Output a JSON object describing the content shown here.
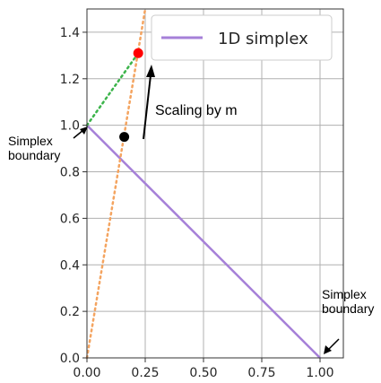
{
  "chart_data": {
    "type": "line",
    "title": "",
    "xlabel": "",
    "ylabel": "",
    "xlim": [
      0.0,
      1.1
    ],
    "ylim": [
      0.0,
      1.5
    ],
    "xticks": [
      "0.00",
      "0.25",
      "0.50",
      "0.75",
      "1.00"
    ],
    "xtick_values": [
      0.0,
      0.25,
      0.5,
      0.75,
      1.0
    ],
    "yticks": [
      "0.0",
      "0.2",
      "0.4",
      "0.6",
      "0.8",
      "1.0",
      "1.2",
      "1.4"
    ],
    "ytick_values": [
      0.0,
      0.2,
      0.4,
      0.6,
      0.8,
      1.0,
      1.2,
      1.4
    ],
    "grid": true,
    "legend": {
      "placement": "top-right",
      "entries": [
        {
          "label": "1D simplex",
          "color": "#a680d8"
        }
      ]
    },
    "series": [
      {
        "name": "1D simplex",
        "style": "solid",
        "color": "#a680d8",
        "x": [
          0.0,
          1.0
        ],
        "y": [
          1.0,
          0.0
        ]
      },
      {
        "style": "dotted",
        "color": "#f4a460",
        "x": [
          0.0,
          0.25
        ],
        "y": [
          0.0,
          1.5
        ]
      },
      {
        "style": "dotted",
        "color": "#3cb44b",
        "x": [
          0.0,
          0.22
        ],
        "y": [
          1.0,
          1.31
        ]
      }
    ],
    "points": [
      {
        "x": 0.16,
        "y": 0.95,
        "color": "#000000"
      },
      {
        "x": 0.22,
        "y": 1.31,
        "color": "#ff0000"
      }
    ],
    "annotations": {
      "scaling": "Scaling by m",
      "boundary_left": [
        "Simplex",
        "boundary"
      ],
      "boundary_right": [
        "Simplex",
        "boundary"
      ]
    }
  }
}
